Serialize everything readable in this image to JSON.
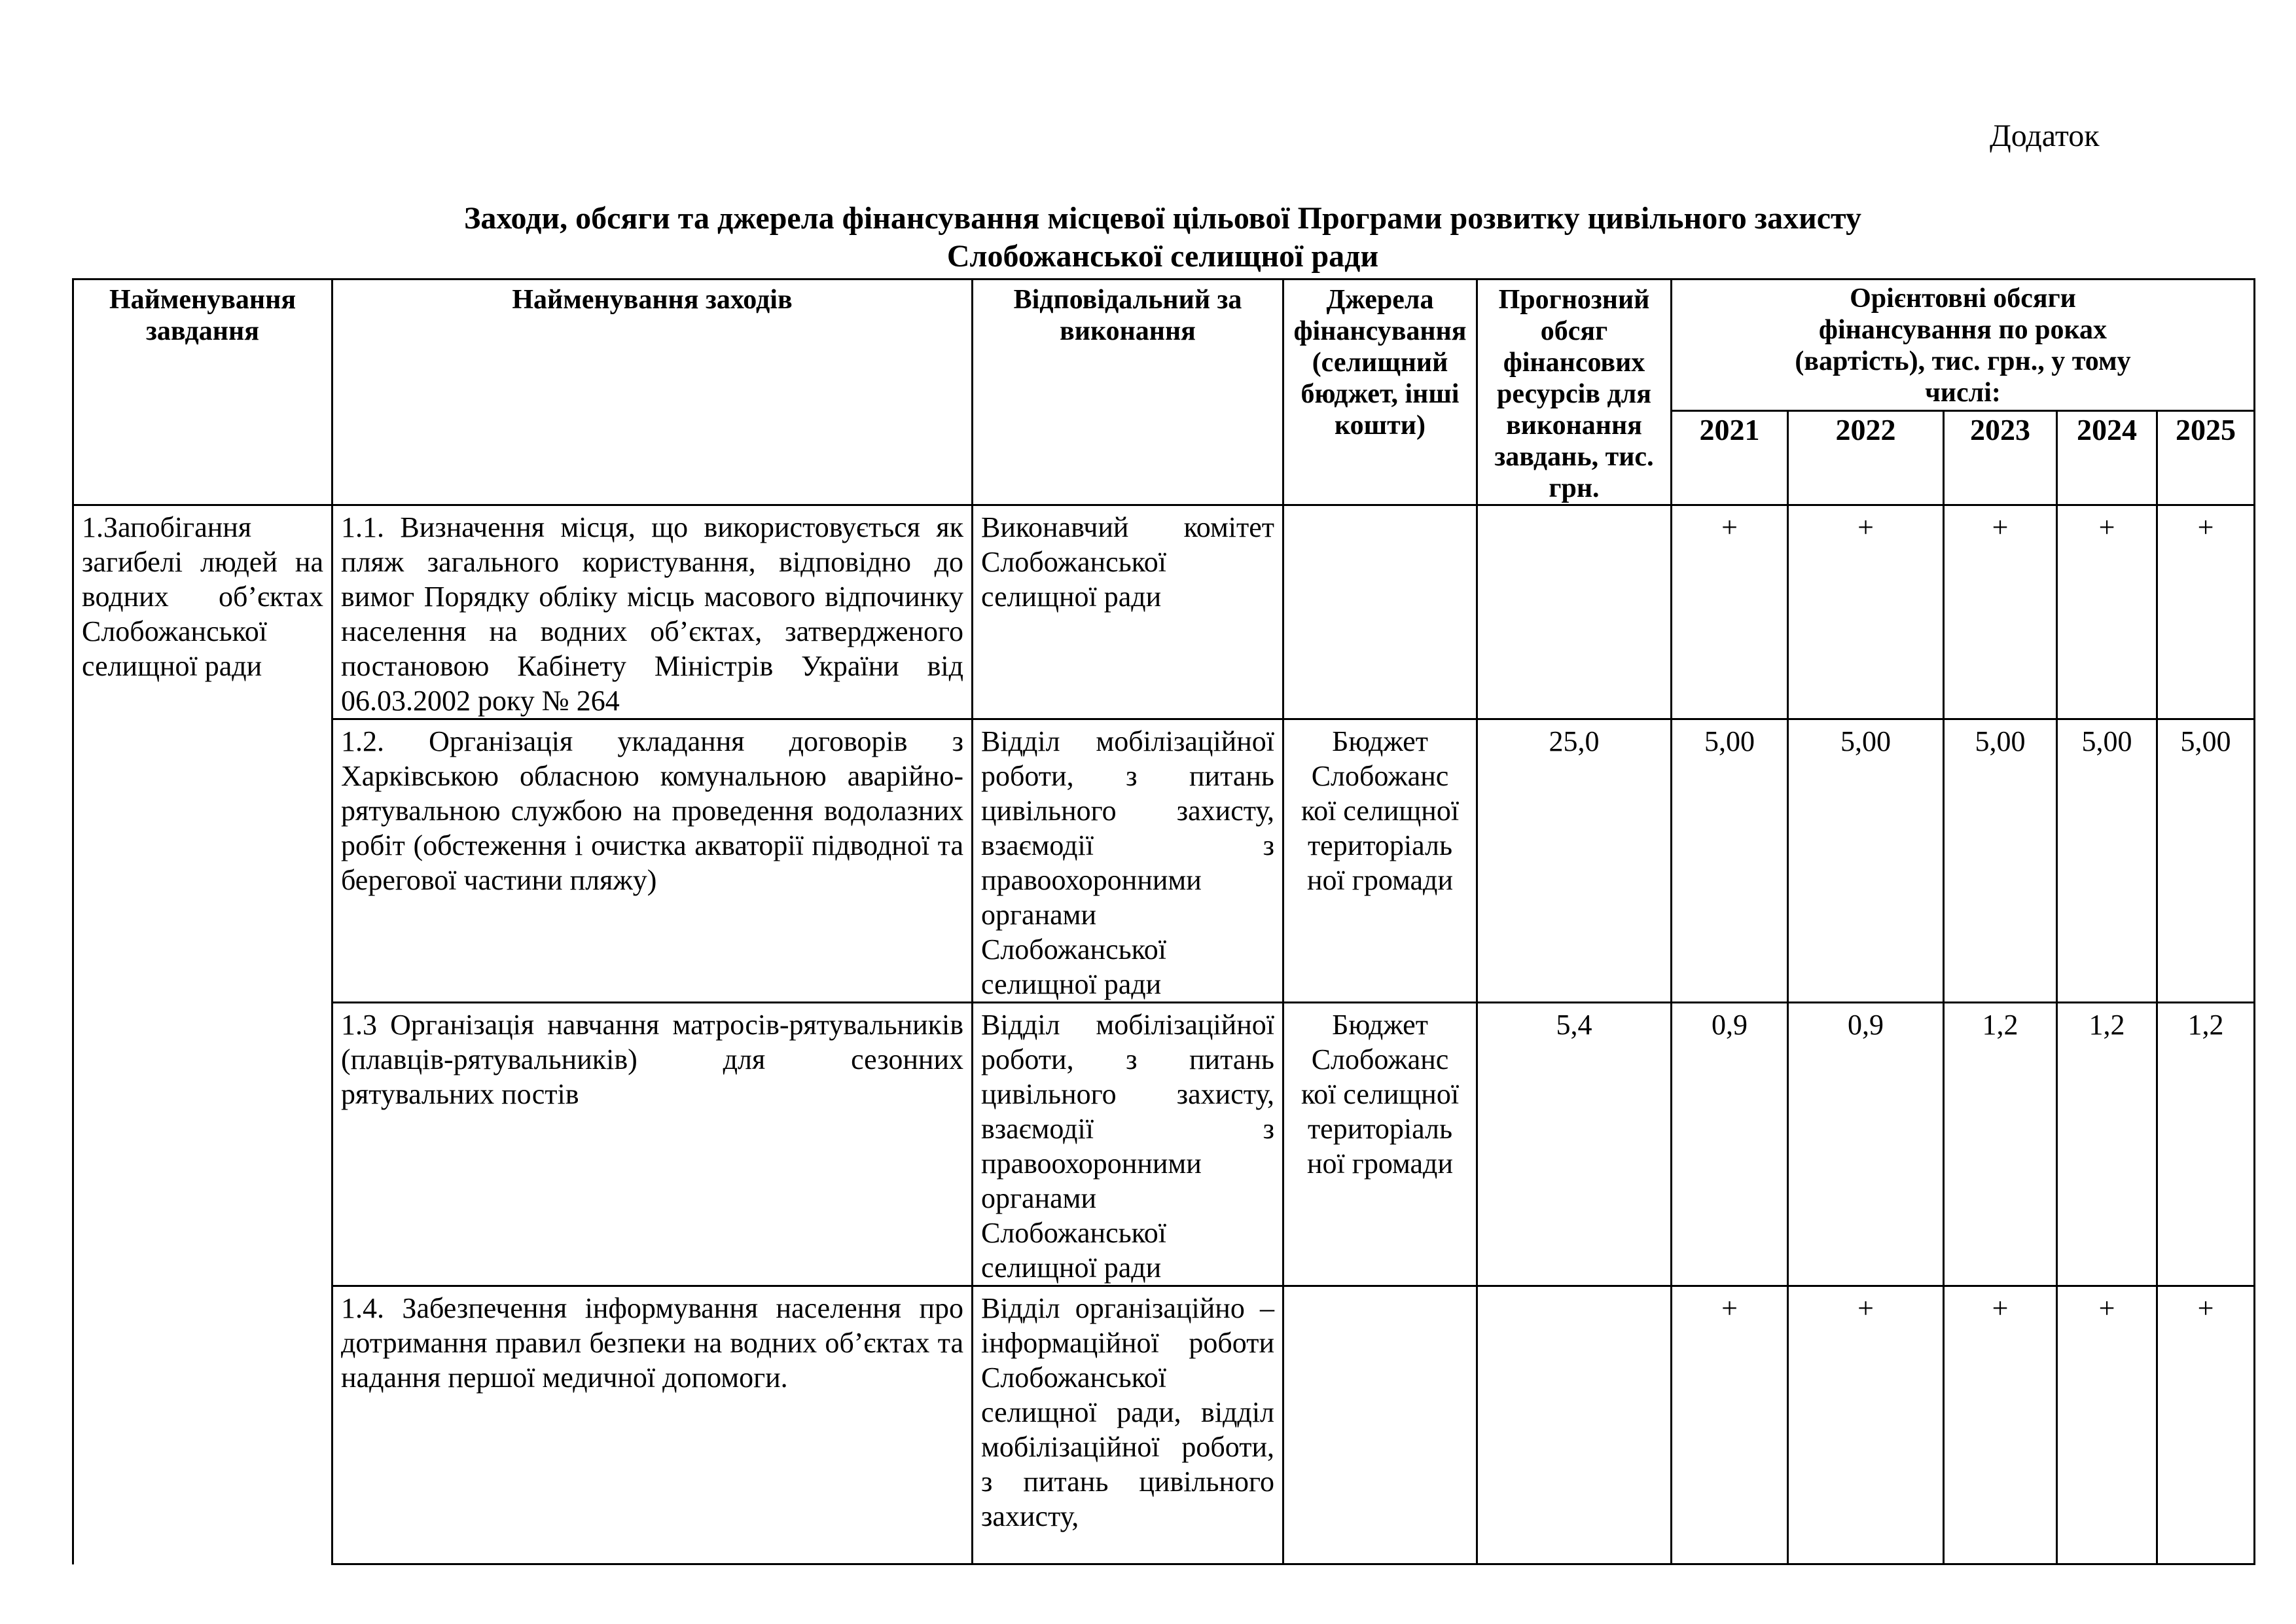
{
  "annex_label": "Додаток",
  "title_line1": "Заходи, обсяги та джерела фінансування місцевої цільової Програми розвитку цивільного захисту",
  "title_line2": "Слобожанської селищної ради",
  "headers": {
    "task": "Найменування завдання",
    "measures": "Найменування заходів",
    "responsible": "Відповідальний за виконання",
    "sources": "Джерела фінансування (селищний бюджет, інші кошти)",
    "forecast": "Прогнозний обсяг фінансових ресурсів для виконання завдань, тис. грн.",
    "by_years": "Орієнтовні обсяги фінансування по роках (вартість), тис. грн., у тому числі:",
    "years": [
      "2021",
      "2022",
      "2023",
      "2024",
      "2025"
    ]
  },
  "task": "1.Запобігання загибелі людей на водних об’єктах Слобожанської селищної ради",
  "rows": [
    {
      "measure": "1.1.  Визначення місця, що використовується як пляж загального користування, відповідно до вимог Порядку обліку місць масового відпочинку населення на водних об’єктах, затвердженого постановою Кабінету Міністрів України від 06.03.2002 року № 264",
      "responsible": "Виконавчий комітет Слобожанської селищної ради",
      "source": "",
      "total": "",
      "years": [
        "+",
        "+",
        "+",
        "+",
        "+"
      ]
    },
    {
      "measure": "1.2. Організація укладання договорів з Харківською обласною комунальною аварійно-рятувальною службою на проведення водолазних робіт (обстеження і очистка акваторії підводної та берегової частини пляжу)",
      "responsible": "Відділ мобілізаційної роботи, з питань цивільного захисту, взаємодії з правоохоронними органами Слобожанської селищної ради",
      "source": "Бюджет Слобожанс кої селищної територіаль ної громади",
      "total": "25,0",
      "years": [
        "5,00",
        "5,00",
        "5,00",
        "5,00",
        "5,00"
      ]
    },
    {
      "measure": "1.3 Організація навчання матросів-рятувальників (плавців-рятувальників) для сезонних рятувальних постів",
      "responsible": "Відділ мобілізаційної роботи, з питань цивільного захисту, взаємодії з правоохоронними органами Слобожанської селищної ради",
      "source": "Бюджет Слобожанс кої селищної територіаль ної громади",
      "total": "5,4",
      "years": [
        "0,9",
        "0,9",
        "1,2",
        "1,2",
        "1,2"
      ]
    },
    {
      "measure": "1.4. Забезпечення інформування населення про дотримання правил безпеки на водних об’єктах та надання першої медичної допомоги.",
      "responsible": "Відділ організаційно – інформаційної роботи Слобожанської селищної ради, відділ мобілізаційної роботи, з питань цивільного захисту,",
      "source": "",
      "total": "",
      "years": [
        "+",
        "+",
        "+",
        "+",
        "+"
      ]
    }
  ]
}
